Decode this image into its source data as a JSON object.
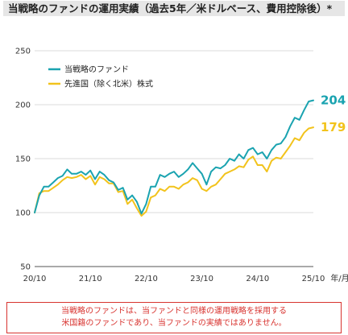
{
  "chart_data": {
    "type": "line",
    "title": "当戦略のファンドの運用実績（過去5年／米ドルベース、費用控除後）*",
    "x_unit_label": "年/月",
    "x_tick_labels": [
      "20/10",
      "21/10",
      "22/10",
      "23/10",
      "24/10",
      "25/10"
    ],
    "y_ticks": [
      250,
      200,
      150,
      100,
      50
    ],
    "ylim": [
      50,
      250
    ],
    "grid": true,
    "legend_placement": "top-left",
    "x": [
      "2020/10",
      "2020/11",
      "2020/12",
      "2021/01",
      "2021/02",
      "2021/03",
      "2021/04",
      "2021/05",
      "2021/06",
      "2021/07",
      "2021/08",
      "2021/09",
      "2021/10",
      "2021/11",
      "2021/12",
      "2022/01",
      "2022/02",
      "2022/03",
      "2022/04",
      "2022/05",
      "2022/06",
      "2022/07",
      "2022/08",
      "2022/09",
      "2022/10",
      "2022/11",
      "2022/12",
      "2023/01",
      "2023/02",
      "2023/03",
      "2023/04",
      "2023/05",
      "2023/06",
      "2023/07",
      "2023/08",
      "2023/09",
      "2023/10",
      "2023/11",
      "2023/12",
      "2024/01",
      "2024/02",
      "2024/03",
      "2024/04",
      "2024/05",
      "2024/06",
      "2024/07",
      "2024/08",
      "2024/09",
      "2024/10",
      "2024/11",
      "2024/12",
      "2025/01",
      "2025/02",
      "2025/03",
      "2025/04",
      "2025/05",
      "2025/06",
      "2025/07",
      "2025/08",
      "2025/09",
      "2025/10"
    ],
    "series": [
      {
        "name": "当戦略のファンド",
        "color": "#1aa3b0",
        "end_label": "204",
        "values": [
          100,
          116,
          124,
          124,
          128,
          132,
          134,
          140,
          136,
          136,
          138,
          135,
          139,
          131,
          138,
          135,
          130,
          128,
          121,
          123,
          112,
          116,
          110,
          99,
          108,
          124,
          124,
          135,
          133,
          136,
          138,
          133,
          136,
          140,
          146,
          141,
          136,
          126,
          138,
          142,
          141,
          144,
          150,
          148,
          154,
          150,
          158,
          160,
          154,
          156,
          150,
          158,
          163,
          164,
          170,
          180,
          188,
          186,
          195,
          203,
          204
        ]
      },
      {
        "name": "先進国（除く北米）株式",
        "color": "#f2c31c",
        "end_label": "179",
        "values": [
          100,
          118,
          120,
          120,
          123,
          126,
          130,
          133,
          132,
          133,
          135,
          131,
          134,
          126,
          133,
          131,
          127,
          127,
          119,
          120,
          108,
          112,
          104,
          97,
          101,
          114,
          116,
          122,
          120,
          124,
          124,
          122,
          126,
          128,
          132,
          130,
          122,
          120,
          124,
          126,
          131,
          136,
          138,
          140,
          143,
          142,
          149,
          152,
          144,
          144,
          138,
          148,
          151,
          150,
          156,
          162,
          169,
          167,
          174,
          178,
          179
        ]
      }
    ]
  },
  "disclaimer": {
    "line1": "当戦略のファンドは、当ファンドと同様の運用戦略を採用する",
    "line2": "米国籍のファンドであり、当ファンドの実績ではありません。"
  }
}
